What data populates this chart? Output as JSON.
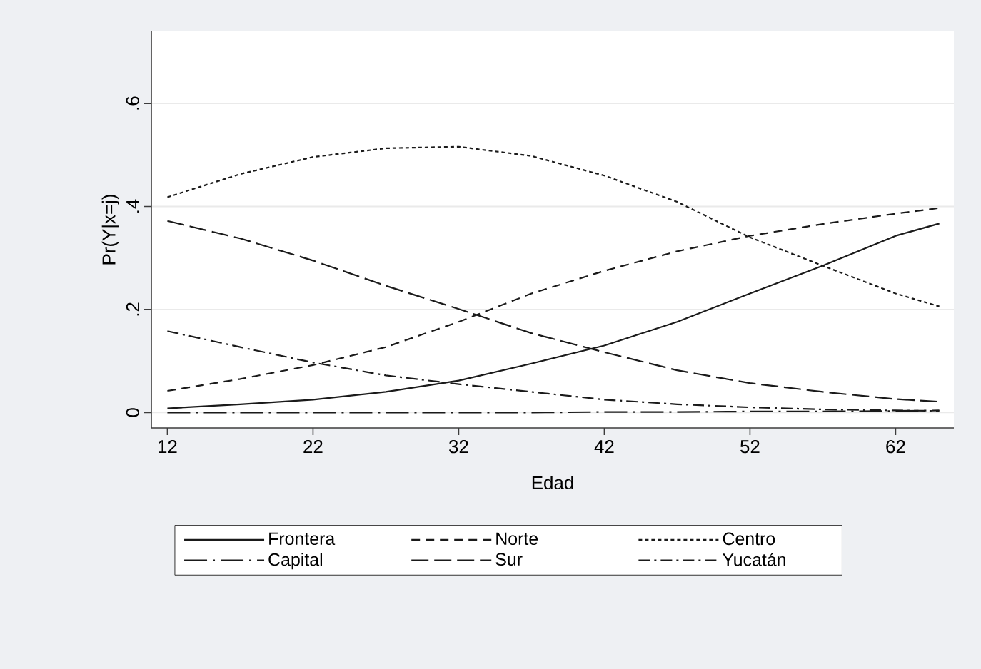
{
  "chart_data": {
    "type": "line",
    "xlabel": "Edad",
    "ylabel": "Pr(Y|x=j)",
    "x": [
      12,
      17,
      22,
      27,
      32,
      37,
      42,
      47,
      52,
      57,
      62,
      65
    ],
    "series": [
      {
        "name": "Frontera",
        "color": "#1a1a1a",
        "line_style": "solid",
        "values": [
          0.008,
          0.016,
          0.025,
          0.04,
          0.062,
          0.095,
          0.13,
          0.176,
          0.231,
          0.285,
          0.343,
          0.367
        ]
      },
      {
        "name": "Norte",
        "color": "#1a1a1a",
        "line_style": "dashed",
        "values": [
          0.042,
          0.065,
          0.092,
          0.127,
          0.176,
          0.231,
          0.275,
          0.313,
          0.343,
          0.366,
          0.386,
          0.397
        ]
      },
      {
        "name": "Centro",
        "color": "#1a1a1a",
        "line_style": "dotted",
        "values": [
          0.418,
          0.463,
          0.496,
          0.513,
          0.516,
          0.498,
          0.46,
          0.409,
          0.34,
          0.285,
          0.231,
          0.206
        ]
      },
      {
        "name": "Capital",
        "color": "#1a1a1a",
        "line_style": "longdashdot",
        "values": [
          0.0,
          0.0,
          0.0,
          0.0,
          0.0,
          0.0,
          0.001,
          0.001,
          0.002,
          0.002,
          0.003,
          0.004
        ]
      },
      {
        "name": "Sur",
        "color": "#1a1a1a",
        "line_style": "longdash",
        "values": [
          0.372,
          0.338,
          0.295,
          0.246,
          0.201,
          0.154,
          0.117,
          0.082,
          0.057,
          0.04,
          0.026,
          0.021
        ]
      },
      {
        "name": "Yucatán",
        "color": "#1a1a1a",
        "line_style": "dashdot",
        "values": [
          0.158,
          0.127,
          0.097,
          0.072,
          0.055,
          0.04,
          0.025,
          0.016,
          0.01,
          0.006,
          0.004,
          0.003
        ]
      }
    ],
    "xlim": [
      10.9,
      66
    ],
    "ylim": [
      -0.03,
      0.74
    ],
    "xticks": [
      12,
      22,
      32,
      42,
      52,
      62
    ],
    "yticks": [
      {
        "value": 0,
        "label": "0"
      },
      {
        "value": 0.2,
        "label": ".2"
      },
      {
        "value": 0.4,
        "label": ".4"
      },
      {
        "value": 0.6,
        "label": ".6"
      }
    ],
    "grid": "y",
    "legend": "bottom"
  }
}
